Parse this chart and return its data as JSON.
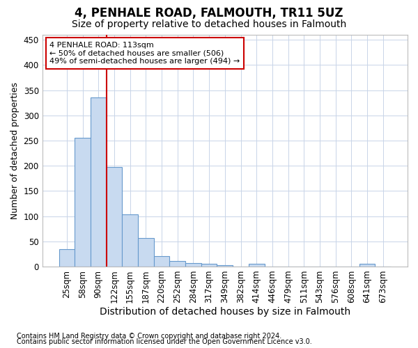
{
  "title": "4, PENHALE ROAD, FALMOUTH, TR11 5UZ",
  "subtitle": "Size of property relative to detached houses in Falmouth",
  "xlabel": "Distribution of detached houses by size in Falmouth",
  "ylabel": "Number of detached properties",
  "footer_line1": "Contains HM Land Registry data © Crown copyright and database right 2024.",
  "footer_line2": "Contains public sector information licensed under the Open Government Licence v3.0.",
  "bar_labels": [
    "25sqm",
    "58sqm",
    "90sqm",
    "122sqm",
    "155sqm",
    "187sqm",
    "220sqm",
    "252sqm",
    "284sqm",
    "317sqm",
    "349sqm",
    "382sqm",
    "414sqm",
    "446sqm",
    "479sqm",
    "511sqm",
    "543sqm",
    "576sqm",
    "608sqm",
    "641sqm",
    "673sqm"
  ],
  "bar_values": [
    35,
    256,
    335,
    197,
    104,
    57,
    20,
    11,
    7,
    5,
    3,
    0,
    5,
    0,
    0,
    0,
    0,
    0,
    0,
    5,
    0
  ],
  "bar_color": "#c8daf0",
  "bar_edge_color": "#6699cc",
  "vline_color": "#cc0000",
  "vline_x_idx": 2.5,
  "annotation_text": "4 PENHALE ROAD: 113sqm\n← 50% of detached houses are smaller (506)\n49% of semi-detached houses are larger (494) →",
  "annotation_box_color": "white",
  "annotation_box_edge": "#cc0000",
  "ylim": [
    0,
    460
  ],
  "yticks": [
    0,
    50,
    100,
    150,
    200,
    250,
    300,
    350,
    400,
    450
  ],
  "background_color": "white",
  "grid_color": "#c8d4e8",
  "title_fontsize": 12,
  "subtitle_fontsize": 10,
  "xlabel_fontsize": 10,
  "ylabel_fontsize": 9,
  "tick_fontsize": 8.5,
  "footer_fontsize": 7
}
